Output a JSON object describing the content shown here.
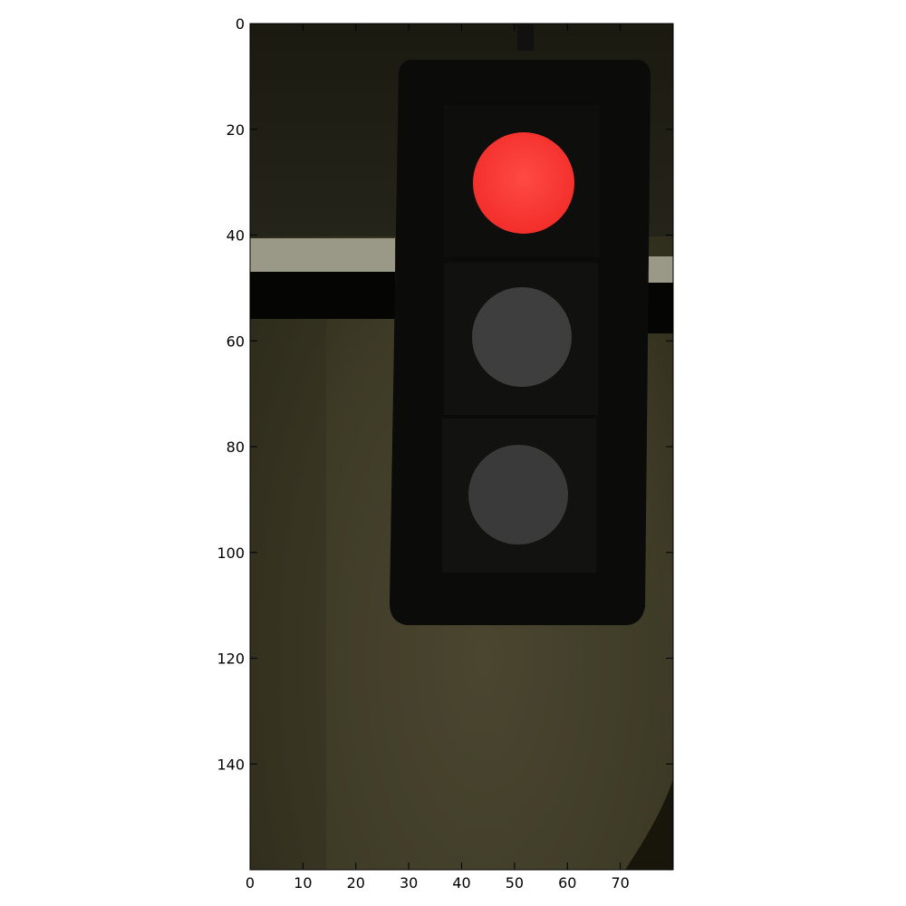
{
  "image": {
    "subject": "traffic-light",
    "active_signal": "red",
    "signals": [
      {
        "name": "red-lamp",
        "state": "on",
        "color": "#ff3a36"
      },
      {
        "name": "yellow-lamp",
        "state": "off",
        "color": "#3e3e3e"
      },
      {
        "name": "green-lamp",
        "state": "off",
        "color": "#3a3a3a"
      }
    ],
    "colors": {
      "housing": "#0b0b09",
      "background": "#3f3c24",
      "arm_highlight": "#9a9988",
      "arm_shadow": "#050504"
    }
  },
  "axes": {
    "x_ticks": [
      0,
      10,
      20,
      30,
      40,
      50,
      60,
      70
    ],
    "y_ticks": [
      0,
      20,
      40,
      60,
      80,
      100,
      120,
      140
    ],
    "xlim": [
      0,
      80
    ],
    "ylim": [
      160,
      0
    ],
    "x_tick_labels": [
      "0",
      "10",
      "20",
      "30",
      "40",
      "50",
      "60",
      "70"
    ],
    "y_tick_labels": [
      "0",
      "20",
      "40",
      "60",
      "80",
      "100",
      "120",
      "140"
    ]
  }
}
